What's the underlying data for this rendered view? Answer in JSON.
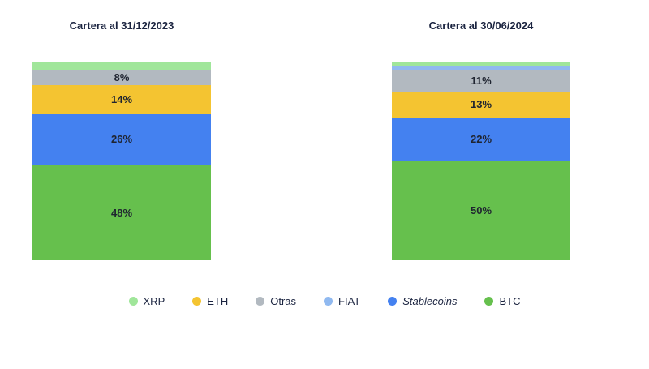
{
  "charts": [
    {
      "title": "Cartera al 31/12/2023",
      "segments": [
        {
          "name": "XRP",
          "value": 4,
          "label": "",
          "color": "#a0e69a"
        },
        {
          "name": "Otras",
          "value": 8,
          "label": "8%",
          "color": "#b2b9c0"
        },
        {
          "name": "ETH",
          "value": 14,
          "label": "14%",
          "color": "#f4c431"
        },
        {
          "name": "Stablecoins",
          "value": 26,
          "label": "26%",
          "color": "#4481f0"
        },
        {
          "name": "BTC",
          "value": 48,
          "label": "48%",
          "color": "#66c04d"
        }
      ]
    },
    {
      "title": "Cartera al 30/06/2024",
      "segments": [
        {
          "name": "XRP",
          "value": 2,
          "label": "",
          "color": "#a0e69a"
        },
        {
          "name": "FIAT",
          "value": 2,
          "label": "",
          "color": "#90b9f0"
        },
        {
          "name": "Otras",
          "value": 11,
          "label": "11%",
          "color": "#b2b9c0"
        },
        {
          "name": "ETH",
          "value": 13,
          "label": "13%",
          "color": "#f4c431"
        },
        {
          "name": "Stablecoins",
          "value": 22,
          "label": "22%",
          "color": "#4481f0"
        },
        {
          "name": "BTC",
          "value": 50,
          "label": "50%",
          "color": "#66c04d"
        }
      ]
    }
  ],
  "legend": [
    {
      "label": "XRP",
      "color": "#a0e69a",
      "italic": false
    },
    {
      "label": "ETH",
      "color": "#f4c431",
      "italic": false
    },
    {
      "label": "Otras",
      "color": "#b2b9c0",
      "italic": false
    },
    {
      "label": "FIAT",
      "color": "#90b9f0",
      "italic": false
    },
    {
      "label": "Stablecoins",
      "color": "#4481f0",
      "italic": true
    },
    {
      "label": "BTC",
      "color": "#66c04d",
      "italic": false
    }
  ],
  "chart_data": {
    "type": "bar",
    "subtype": "stacked-100-percent-column",
    "categories": [
      "Cartera al 31/12/2023",
      "Cartera al 30/06/2024"
    ],
    "series": [
      {
        "name": "XRP",
        "values": [
          4,
          2
        ]
      },
      {
        "name": "FIAT",
        "values": [
          0,
          2
        ]
      },
      {
        "name": "Otras",
        "values": [
          8,
          11
        ]
      },
      {
        "name": "ETH",
        "values": [
          14,
          13
        ]
      },
      {
        "name": "Stablecoins",
        "values": [
          26,
          22
        ]
      },
      {
        "name": "BTC",
        "values": [
          48,
          50
        ]
      }
    ],
    "data_labels_shown": [
      "8%",
      "14%",
      "26%",
      "48%",
      "11%",
      "13%",
      "22%",
      "50%"
    ],
    "ylim": [
      0,
      100
    ],
    "grid": false,
    "legend_position": "bottom",
    "colors": {
      "XRP": "#a0e69a",
      "ETH": "#f4c431",
      "Otras": "#b2b9c0",
      "FIAT": "#90b9f0",
      "Stablecoins": "#4481f0",
      "BTC": "#66c04d"
    }
  }
}
